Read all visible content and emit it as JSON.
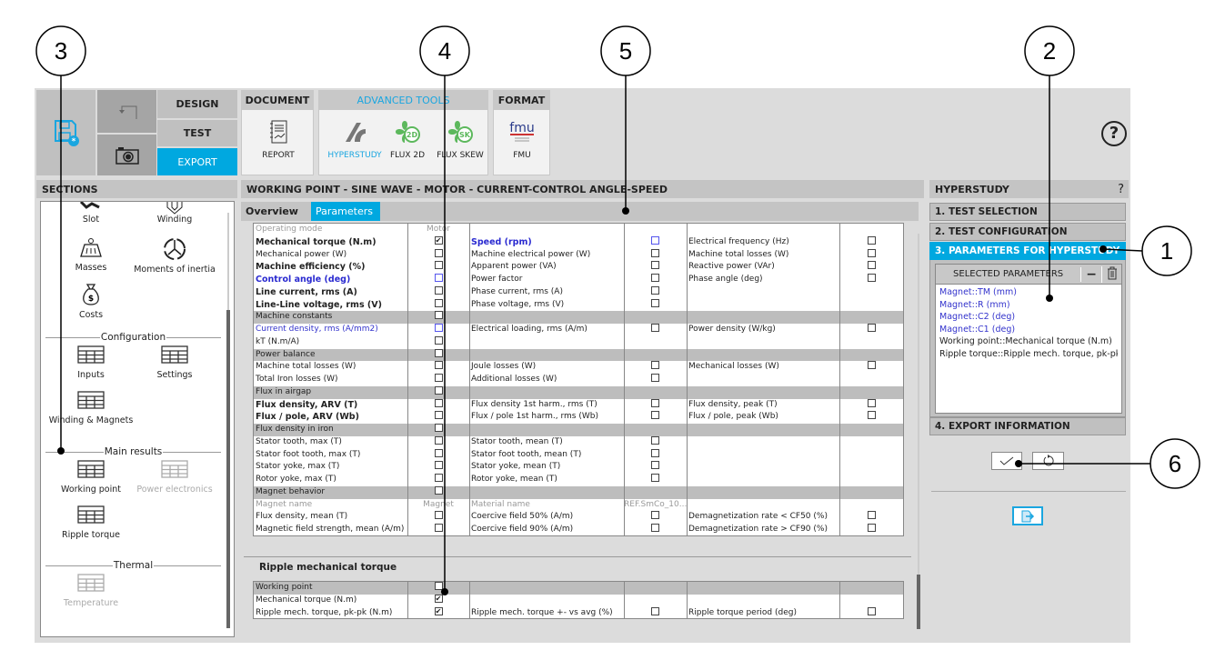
{
  "colors": {
    "accent": "#00a8e0",
    "selected_blue": "#3333cc",
    "header_gray": "#c0c0c0"
  },
  "ribbon": {
    "save_icon": "save-settings-icon",
    "modes": {
      "design": "DESIGN",
      "test": "TEST",
      "export": "EXPORT"
    },
    "document": {
      "title": "DOCUMENT",
      "tools": [
        {
          "label": "REPORT",
          "icon": "report-icon"
        }
      ]
    },
    "advanced": {
      "title": "ADVANCED TOOLS",
      "tools": [
        {
          "label": "HYPERSTUDY",
          "icon": "hyperstudy-icon"
        },
        {
          "label": "FLUX 2D",
          "icon": "flux-2d-icon"
        },
        {
          "label": "FLUX SKEW",
          "icon": "flux-skew-icon"
        }
      ]
    },
    "format": {
      "title": "FORMAT",
      "tools": [
        {
          "label": "FMU",
          "icon": "fmu-icon"
        }
      ]
    },
    "help": "?"
  },
  "sections": {
    "title": "SECTIONS",
    "top_items": [
      {
        "label": "Slot"
      },
      {
        "label": "Winding"
      },
      {
        "label": "Masses"
      },
      {
        "label": "Moments of inertia"
      },
      {
        "label": "Costs"
      }
    ],
    "groups": [
      {
        "title": "Configuration",
        "items": [
          {
            "label": "Inputs",
            "enabled": true
          },
          {
            "label": "Settings",
            "enabled": true
          },
          {
            "label": "Winding & Magnets",
            "enabled": true
          }
        ]
      },
      {
        "title": "Main results",
        "items": [
          {
            "label": "Working point",
            "enabled": true
          },
          {
            "label": "Power electronics",
            "enabled": false
          },
          {
            "label": "Ripple torque",
            "enabled": true
          }
        ]
      },
      {
        "title": "Thermal",
        "items": [
          {
            "label": "Temperature",
            "enabled": false
          }
        ]
      }
    ]
  },
  "main": {
    "title": "WORKING POINT - SINE WAVE - MOTOR - CURRENT-CONTROL ANGLE-SPEED",
    "tabs": [
      {
        "label": "Overview",
        "active": false
      },
      {
        "label": "Parameters",
        "active": true
      }
    ],
    "table": [
      {
        "h": false,
        "c": [
          [
            "Operating mode",
            "gray"
          ],
          [
            "Motor",
            "gray"
          ],
          null,
          null,
          null,
          null
        ]
      },
      {
        "h": false,
        "c": [
          [
            "Mechanical torque (N.m)",
            "b"
          ],
          "on",
          [
            "Speed (rpm)",
            "bb"
          ],
          "blue",
          [
            "Electrical frequency (Hz)",
            ""
          ],
          "off"
        ]
      },
      {
        "h": false,
        "c": [
          [
            "Mechanical power (W)",
            ""
          ],
          "off",
          [
            "Machine electrical power (W)",
            ""
          ],
          "off",
          [
            "Machine total losses (W)",
            ""
          ],
          "off"
        ]
      },
      {
        "h": false,
        "c": [
          [
            "Machine efficiency (%)",
            "b"
          ],
          "off",
          [
            "Apparent power (VA)",
            ""
          ],
          "off",
          [
            "Reactive power (VAr)",
            ""
          ],
          "off"
        ]
      },
      {
        "h": false,
        "c": [
          [
            "Control angle (deg)",
            "bb"
          ],
          "blue",
          [
            "Power factor",
            ""
          ],
          "off",
          [
            "Phase angle (deg)",
            ""
          ],
          "off"
        ]
      },
      {
        "h": false,
        "c": [
          [
            "Line current, rms (A)",
            "b"
          ],
          "off",
          [
            "Phase current, rms (A)",
            ""
          ],
          "off",
          null,
          null
        ]
      },
      {
        "h": false,
        "c": [
          [
            "Line-Line voltage, rms (V)",
            "b"
          ],
          "off",
          [
            "Phase voltage, rms (V)",
            ""
          ],
          "off",
          null,
          null
        ]
      },
      {
        "h": true,
        "c": [
          [
            "Machine constants",
            ""
          ],
          "off",
          null,
          null,
          null,
          null
        ]
      },
      {
        "h": false,
        "c": [
          [
            "Current density, rms (A/mm2)",
            "blue"
          ],
          "blue",
          [
            "Electrical loading, rms (A/m)",
            ""
          ],
          "off",
          [
            "Power density (W/kg)",
            ""
          ],
          "off"
        ]
      },
      {
        "h": false,
        "c": [
          [
            "kT (N.m/A)",
            ""
          ],
          "off",
          null,
          null,
          null,
          null
        ]
      },
      {
        "h": true,
        "c": [
          [
            "Power balance",
            ""
          ],
          "off",
          null,
          null,
          null,
          null
        ]
      },
      {
        "h": false,
        "c": [
          [
            "Machine total losses (W)",
            ""
          ],
          "off",
          [
            "Joule losses (W)",
            ""
          ],
          "off",
          [
            "Mechanical losses (W)",
            ""
          ],
          "off"
        ]
      },
      {
        "h": false,
        "c": [
          [
            "Total Iron losses (W)",
            ""
          ],
          "off",
          [
            "Additional losses (W)",
            ""
          ],
          "off",
          null,
          null
        ]
      },
      {
        "h": true,
        "c": [
          [
            "Flux in airgap",
            ""
          ],
          "off",
          null,
          null,
          null,
          null
        ]
      },
      {
        "h": false,
        "c": [
          [
            "Flux density, ARV (T)",
            "b"
          ],
          "off",
          [
            "Flux density 1st harm., rms (T)",
            ""
          ],
          "off",
          [
            "Flux density, peak (T)",
            ""
          ],
          "off"
        ]
      },
      {
        "h": false,
        "c": [
          [
            "Flux / pole, ARV (Wb)",
            "b"
          ],
          "off",
          [
            "Flux / pole 1st harm., rms (Wb)",
            ""
          ],
          "off",
          [
            "Flux / pole, peak (Wb)",
            ""
          ],
          "off"
        ]
      },
      {
        "h": true,
        "c": [
          [
            "Flux density in iron",
            ""
          ],
          "off",
          null,
          null,
          null,
          null
        ]
      },
      {
        "h": false,
        "c": [
          [
            "Stator tooth, max (T)",
            ""
          ],
          "off",
          [
            "Stator tooth, mean (T)",
            ""
          ],
          "off",
          null,
          null
        ]
      },
      {
        "h": false,
        "c": [
          [
            "Stator foot tooth, max (T)",
            ""
          ],
          "off",
          [
            "Stator foot tooth, mean (T)",
            ""
          ],
          "off",
          null,
          null
        ]
      },
      {
        "h": false,
        "c": [
          [
            "Stator yoke, max (T)",
            ""
          ],
          "off",
          [
            "Stator yoke, mean (T)",
            ""
          ],
          "off",
          null,
          null
        ]
      },
      {
        "h": false,
        "c": [
          [
            "Rotor yoke, max (T)",
            ""
          ],
          "off",
          [
            "Rotor yoke, mean (T)",
            ""
          ],
          "off",
          null,
          null
        ]
      },
      {
        "h": true,
        "c": [
          [
            "Magnet behavior",
            ""
          ],
          "off",
          null,
          null,
          null,
          null
        ]
      },
      {
        "h": false,
        "c": [
          [
            "Magnet name",
            "gray"
          ],
          [
            "Magnet",
            "gray"
          ],
          [
            "Material name",
            "gray"
          ],
          [
            "REF.SmCo_10...",
            "gray"
          ],
          null,
          null
        ]
      },
      {
        "h": false,
        "c": [
          [
            "Flux density, mean (T)",
            ""
          ],
          "off",
          [
            "Coercive field 50% (A/m)",
            ""
          ],
          "off",
          [
            "Demagnetization rate <  CF50 (%)",
            ""
          ],
          "off"
        ]
      },
      {
        "h": false,
        "c": [
          [
            "Magnetic field strength, mean (A/m)",
            ""
          ],
          "off",
          [
            "Coercive field 90% (A/m)",
            ""
          ],
          "off",
          [
            "Demagnetization rate >  CF90 (%)",
            ""
          ],
          "off"
        ]
      }
    ],
    "ripple_title": "Ripple mechanical torque",
    "ripple_table": [
      {
        "h": true,
        "c": [
          [
            "Working point",
            ""
          ],
          "off",
          null,
          null,
          null,
          null
        ]
      },
      {
        "h": false,
        "c": [
          [
            "Mechanical torque (N.m)",
            ""
          ],
          "on",
          null,
          null,
          null,
          null
        ]
      },
      {
        "h": false,
        "c": [
          [
            "Ripple mech. torque, pk-pk (N.m)",
            ""
          ],
          "on",
          [
            "Ripple mech. torque +- vs avg (%)",
            ""
          ],
          "off",
          [
            "Ripple torque period (deg)",
            ""
          ],
          "off"
        ]
      }
    ]
  },
  "hyperstudy": {
    "title": "HYPERSTUDY",
    "help": "?",
    "steps": [
      {
        "label": "1. TEST SELECTION"
      },
      {
        "label": "2. TEST CONFIGURATION"
      },
      {
        "label": "3. PARAMETERS FOR HYPERSTUDY"
      },
      {
        "label": "4. EXPORT INFORMATION"
      }
    ],
    "selected_title": "SELECTED PARAMETERS",
    "remove": "−",
    "selected": [
      {
        "text": "Magnet::TM (mm)",
        "blue": true
      },
      {
        "text": "Magnet::R (mm)",
        "blue": true
      },
      {
        "text": "Magnet::C2 (deg)",
        "blue": true
      },
      {
        "text": "Magnet::C1 (deg)",
        "blue": true
      },
      {
        "text": "Working point::Mechanical torque (N.m)",
        "blue": false
      },
      {
        "text": "Ripple torque::Ripple mech. torque, pk-pk (N...",
        "blue": false
      }
    ]
  },
  "callouts": [
    "1",
    "2",
    "3",
    "4",
    "5",
    "6"
  ]
}
